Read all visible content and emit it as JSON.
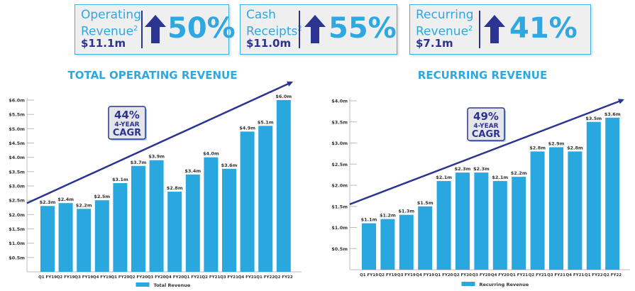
{
  "kpis": [
    {
      "label1": "Operating",
      "label2": "Revenue",
      "sup": "2",
      "amount": "$11.1m",
      "change": "50%"
    },
    {
      "label1": "Cash",
      "label2": "Receipts",
      "sup": "2",
      "amount": "$11.0m",
      "change": "55%"
    },
    {
      "label1": "Recurring",
      "label2": "Revenue",
      "sup": "2",
      "amount": "$7.1m",
      "change": "41%"
    }
  ],
  "colors": {
    "bar": "#29a8e0",
    "arrow": "#2b3490",
    "accent": "#2fa8e2"
  },
  "chart_data": [
    {
      "type": "bar",
      "title": "TOTAL OPERATING REVENUE",
      "legend": "Total Revenue",
      "legend_position": "bottom",
      "categories": [
        "Q1 FY19",
        "Q2 FY19",
        "Q3 FY19",
        "Q4 FY19",
        "Q1 FY20",
        "Q2 FY20",
        "Q3 FY20",
        "Q4 FY20",
        "Q1 FY21",
        "Q2 FY21",
        "Q3 FY21",
        "Q4 FY21",
        "Q1 FY22",
        "Q2 FY22"
      ],
      "values": [
        2.3,
        2.4,
        2.2,
        2.5,
        3.1,
        3.7,
        3.9,
        2.8,
        3.4,
        4.0,
        3.6,
        4.9,
        5.1,
        6.0
      ],
      "data_labels": [
        "$2.3m",
        "$2.4m",
        "$2.2m",
        "$2.5m",
        "$3.1m",
        "$3.7m",
        "$3.9m",
        "$2.8m",
        "$3.4m",
        "$4.0m",
        "$3.6m",
        "$4.9m",
        "$5.1m",
        "$6.0m"
      ],
      "yticks": [
        "$0.5m",
        "$1.0m",
        "$1.5m",
        "$2.0m",
        "$2.5m",
        "$3.0m",
        "$3.5m",
        "$4.0m",
        "$4.5m",
        "$5.0m",
        "$5.5m",
        "$6.0m"
      ],
      "ylim": [
        0,
        6.0
      ],
      "trend_start": 2.4,
      "annotation": {
        "pct": "44%",
        "line1": "4-YEAR",
        "line2": "CAGR"
      }
    },
    {
      "type": "bar",
      "title": "RECURRING REVENUE",
      "legend": "Recurring Revenue",
      "legend_position": "bottom",
      "categories": [
        "Q1 FY19",
        "Q2 FY19",
        "Q3 FY19",
        "Q4 FY19",
        "Q1 FY20",
        "Q2 FY20",
        "Q3 FY20",
        "Q4 FY20",
        "Q1 FY21",
        "Q2 FY21",
        "Q3 FY21",
        "Q4 FY21",
        "Q1 FY22",
        "Q2 FY22"
      ],
      "values": [
        1.1,
        1.2,
        1.3,
        1.5,
        2.1,
        2.3,
        2.3,
        2.1,
        2.2,
        2.8,
        2.9,
        2.8,
        3.5,
        3.6
      ],
      "data_labels": [
        "$1.1m",
        "$1.2m",
        "$1.3m",
        "$1.5m",
        "$2.1m",
        "$2.3m",
        "$2.3m",
        "$2.1m",
        "$2.2m",
        "$2.8m",
        "$2.9m",
        "$2.8m",
        "$3.5m",
        "$3.6m"
      ],
      "yticks": [
        "$0.5m",
        "$1.0m",
        "$1.5m",
        "$2.0m",
        "$2.5m",
        "$3.0m",
        "$3.5m",
        "$4.0m"
      ],
      "ylim": [
        0,
        4.0
      ],
      "trend_start": 1.55,
      "annotation": {
        "pct": "49%",
        "line1": "4-YEAR",
        "line2": "CAGR"
      }
    }
  ]
}
